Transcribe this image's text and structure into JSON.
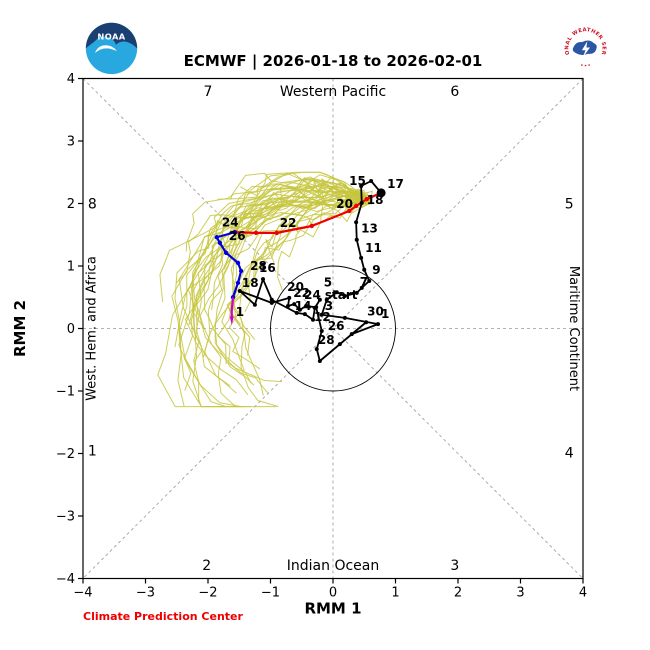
{
  "header": {
    "title": "ECMWF | 2026-01-18 to 2026-02-01",
    "noaa_logo_text": "NOAA",
    "nws_ring_text": "NATIONAL WEATHER SERVICE"
  },
  "footer": {
    "credit": "Climate Prediction Center"
  },
  "colors": {
    "observed": "#000000",
    "forecast_week1": "#ee0000",
    "forecast_week2": "#0000dd",
    "forecast_final": "#cc00cc",
    "ensemble": "#c5c53e",
    "grid": "#999999",
    "credit": "#ee0000"
  },
  "chart_data": {
    "type": "line",
    "title": "ECMWF | 2026-01-18 to 2026-02-01",
    "xlabel": "RMM 1",
    "ylabel": "RMM 2",
    "xlim": [
      -4,
      4
    ],
    "ylim": [
      -4,
      4
    ],
    "xticks": [
      -4,
      -3,
      -2,
      -1,
      0,
      1,
      2,
      3,
      4
    ],
    "yticks": [
      -4,
      -3,
      -2,
      -1,
      0,
      1,
      2,
      3,
      4
    ],
    "unit_circle_radius": 1,
    "grid": {
      "diagonals": true,
      "cross": true,
      "dash": [
        3,
        3
      ]
    },
    "phase_labels": [
      {
        "text": "7",
        "x": -2.0,
        "y": 3.8
      },
      {
        "text": "Western Pacific",
        "x": 0,
        "y": 3.8
      },
      {
        "text": "6",
        "x": 1.95,
        "y": 3.8
      },
      {
        "text": "8",
        "x": -3.85,
        "y": 2.0
      },
      {
        "text": "5",
        "x": 3.78,
        "y": 2.0
      },
      {
        "text": "1",
        "x": -3.85,
        "y": -1.95
      },
      {
        "text": "4",
        "x": 3.78,
        "y": -1.98
      },
      {
        "text": "2",
        "x": -2.02,
        "y": -3.78
      },
      {
        "text": "Indian Ocean",
        "x": 0,
        "y": -3.78
      },
      {
        "text": "3",
        "x": 1.95,
        "y": -3.78
      }
    ],
    "side_labels": [
      {
        "text": "West. Hem. and Africa",
        "x": -3.8,
        "y": 0,
        "rotation": -90
      },
      {
        "text": "Maritime Continent",
        "x": 3.79,
        "y": 0,
        "rotation": 90
      }
    ],
    "series": [
      {
        "name": "observed",
        "color": "#000000",
        "width": 1.8,
        "marker": 2,
        "end_marker": 4.5,
        "arrow_end": false,
        "points": [
          {
            "x": -0.21,
            "y": 0.46,
            "label": "start",
            "ox": 5,
            "oy": -1
          },
          {
            "x": -0.29,
            "y": 0.33
          },
          {
            "x": -0.32,
            "y": 0.14,
            "label": "12",
            "ox": 1,
            "oy": 1
          },
          {
            "x": -0.45,
            "y": 0.23
          },
          {
            "x": -0.58,
            "y": 0.25,
            "label": "14",
            "ox": -2,
            "oy": -3
          },
          {
            "x": -0.98,
            "y": 0.46
          },
          {
            "x": -1.12,
            "y": 0.79,
            "label": "16",
            "ox": -4,
            "oy": -7
          },
          {
            "x": -1.25,
            "y": 0.38
          },
          {
            "x": -1.49,
            "y": 0.6,
            "label": "18",
            "ox": 2,
            "oy": -4
          },
          {
            "x": -0.98,
            "y": 0.41
          },
          {
            "x": -0.7,
            "y": 0.49,
            "label": "20",
            "ox": -2,
            "oy": -7
          },
          {
            "x": -0.72,
            "y": 0.36
          },
          {
            "x": -0.62,
            "y": 0.39,
            "label": "22",
            "ox": -1,
            "oy": -7
          },
          {
            "x": -0.53,
            "y": 0.3
          },
          {
            "x": -0.43,
            "y": 0.36,
            "label": "24",
            "ox": -2,
            "oy": -7
          },
          {
            "x": -0.27,
            "y": 0.34
          },
          {
            "x": -0.18,
            "y": -0.04,
            "label": "26",
            "ox": 6,
            "oy": -1
          },
          {
            "x": -0.26,
            "y": -0.33
          },
          {
            "x": -0.21,
            "y": -0.52,
            "label": "28",
            "ox": -2,
            "oy": -17
          },
          {
            "x": 0.11,
            "y": -0.25
          },
          {
            "x": 0.53,
            "y": 0.1,
            "label": "30",
            "ox": 1,
            "oy": -7
          },
          {
            "x": 0.3,
            "y": -0.09
          },
          {
            "x": 0.72,
            "y": 0.07,
            "label": "1",
            "ox": 3,
            "oy": -6
          },
          {
            "x": 0.19,
            "y": 0.17
          },
          {
            "x": -0.18,
            "y": 0.22,
            "label": "3",
            "ox": 3,
            "oy": -5
          },
          {
            "x": -0.1,
            "y": 0.46
          },
          {
            "x": 0.06,
            "y": 0.58,
            "label": "5",
            "ox": -13,
            "oy": -6
          },
          {
            "x": 0.19,
            "y": 0.52
          },
          {
            "x": 0.38,
            "y": 0.57,
            "label": "7",
            "ox": 3,
            "oy": -7
          },
          {
            "x": 0.46,
            "y": 0.65
          },
          {
            "x": 0.58,
            "y": 0.76,
            "label": "9",
            "ox": 3,
            "oy": -7
          },
          {
            "x": 0.5,
            "y": 0.94
          },
          {
            "x": 0.45,
            "y": 1.13,
            "label": "11",
            "ox": 4,
            "oy": -6
          },
          {
            "x": 0.38,
            "y": 1.42
          },
          {
            "x": 0.37,
            "y": 1.7,
            "label": "13",
            "ox": 5,
            "oy": 10
          },
          {
            "x": 0.46,
            "y": 2.01
          },
          {
            "x": 0.45,
            "y": 2.28,
            "label": "15",
            "ox": -12,
            "oy": -1
          },
          {
            "x": 0.61,
            "y": 2.36
          },
          {
            "x": 0.77,
            "y": 2.17,
            "label": "17",
            "ox": 6,
            "oy": -5
          }
        ]
      },
      {
        "name": "forecast-mean-days-1-7",
        "color": "#ee0000",
        "width": 2.2,
        "marker": 2.2,
        "arrow_end": true,
        "points": [
          {
            "x": 0.77,
            "y": 2.17
          },
          {
            "x": 0.54,
            "y": 2.07,
            "label": "18",
            "ox": 0,
            "oy": 5
          },
          {
            "x": 0.37,
            "y": 1.96
          },
          {
            "x": 0.26,
            "y": 1.88,
            "label": "20",
            "ox": -13,
            "oy": -3
          },
          {
            "x": -0.34,
            "y": 1.64
          },
          {
            "x": -0.9,
            "y": 1.53,
            "label": "22",
            "ox": 3,
            "oy": -6
          },
          {
            "x": -1.23,
            "y": 1.53
          },
          {
            "x": -1.57,
            "y": 1.54,
            "label": "24",
            "ox": -13,
            "oy": -6
          }
        ]
      },
      {
        "name": "forecast-mean-days-8-14",
        "color": "#0000dd",
        "width": 2.2,
        "marker": 2.2,
        "arrow_end": false,
        "points": [
          {
            "x": -1.57,
            "y": 1.54
          },
          {
            "x": -1.86,
            "y": 1.46
          },
          {
            "x": -1.81,
            "y": 1.37,
            "label": "26",
            "ox": 9,
            "oy": -3
          },
          {
            "x": -1.71,
            "y": 1.21
          },
          {
            "x": -1.52,
            "y": 1.05
          },
          {
            "x": -1.47,
            "y": 0.92,
            "label": "28",
            "ox": 9,
            "oy": -1
          },
          {
            "x": -1.52,
            "y": 0.73
          },
          {
            "x": -1.6,
            "y": 0.5
          }
        ]
      },
      {
        "name": "forecast-mean-final",
        "color": "#cc00cc",
        "width": 2.2,
        "marker": 0,
        "arrow_end": true,
        "points": [
          {
            "x": -1.6,
            "y": 0.5
          },
          {
            "x": -1.62,
            "y": 0.28
          },
          {
            "x": -1.62,
            "y": 0.15,
            "label": "1",
            "ox": 4,
            "oy": -3
          }
        ]
      }
    ],
    "ensemble": {
      "name": "ensemble-members",
      "color": "#c5c53e",
      "width": 1,
      "opacity": 0.85,
      "count": 48,
      "steps": 16,
      "seed": 9,
      "start": [
        0.55,
        2.05
      ],
      "bounds": {
        "xmin": -2.92,
        "xmax": 1.15,
        "ymin": -1.25,
        "ymax": 2.5
      }
    },
    "legend": null
  }
}
